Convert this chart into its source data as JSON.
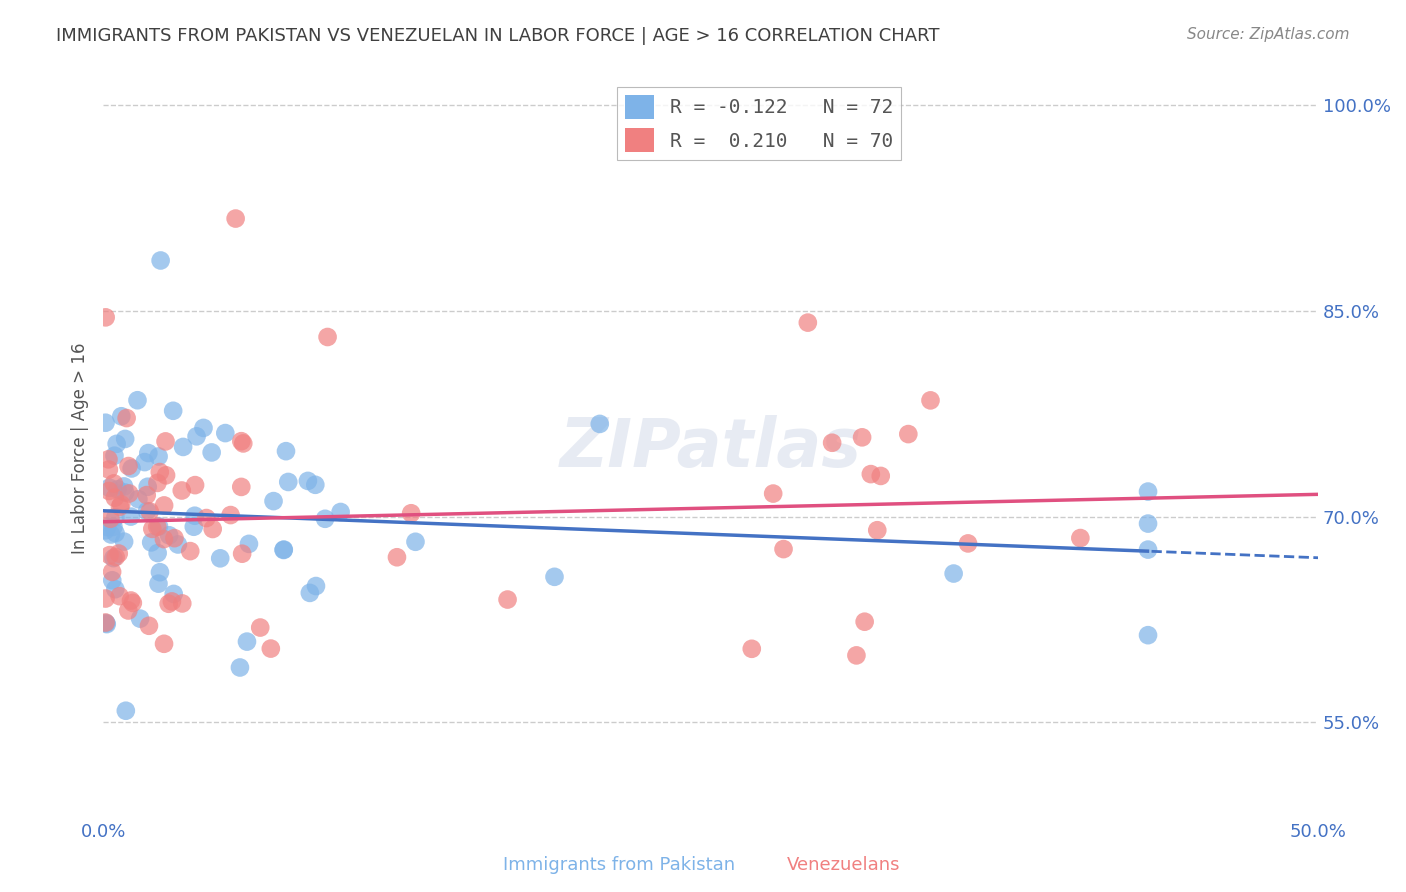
{
  "title": "IMMIGRANTS FROM PAKISTAN VS VENEZUELAN IN LABOR FORCE | AGE > 16 CORRELATION CHART",
  "source": "Source: ZipAtlas.com",
  "ylabel": "In Labor Force | Age > 16",
  "watermark": "ZIPatlas",
  "xlim": [
    0.0,
    0.5
  ],
  "ylim": [
    0.48,
    1.02
  ],
  "yticks": [
    0.55,
    0.7,
    0.85,
    1.0
  ],
  "ytick_labels": [
    "55.0%",
    "70.0%",
    "85.0%",
    "100.0%"
  ],
  "xtick_labels": [
    "0.0%",
    "",
    "",
    "",
    "",
    "50.0%"
  ],
  "pakistan": {
    "color": "#7EB3E8",
    "R": -0.122,
    "N": 72,
    "line_color": "#4472C4"
  },
  "venezuela": {
    "color": "#F08080",
    "R": 0.21,
    "N": 70,
    "line_color": "#E05080"
  },
  "background_color": "#FFFFFF",
  "grid_color": "#CCCCCC",
  "title_color": "#404040",
  "title_fontsize": 13,
  "axis_label_color": "#4472C4"
}
